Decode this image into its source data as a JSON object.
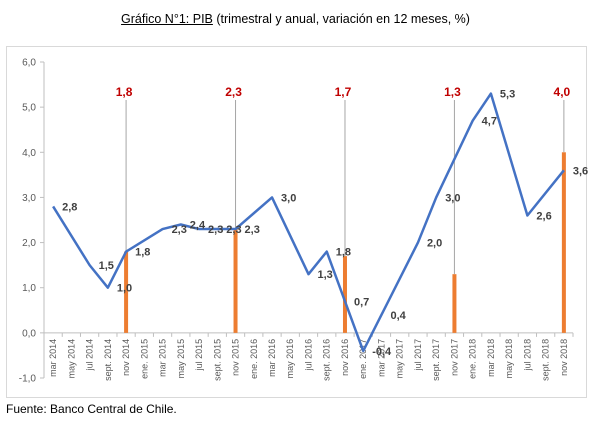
{
  "title": {
    "prefix": "Gráfico N°1: PIB",
    "rest": " (trimestral y anual, variación en 12 meses, %)"
  },
  "source": "Fuente: Banco Central de Chile.",
  "colors": {
    "line": "#4472C4",
    "bar": "#ED7D31",
    "annual_label": "#C00000",
    "quarterly_label": "#404040"
  },
  "chart_data": {
    "type": "bar+line",
    "title": "Gráfico N°1: PIB (trimestral y anual, variación en 12 meses, %)",
    "xlabel": "",
    "ylabel": "",
    "ylim": [
      -1.0,
      6.0
    ],
    "yticks": [
      "-1,0",
      "0,0",
      "1,0",
      "2,0",
      "3,0",
      "4,0",
      "5,0",
      "6,0"
    ],
    "grid": false,
    "legend": "none",
    "categories": [
      "mar 2014",
      "may 2014",
      "jul 2014",
      "sept 2014",
      "nov 2014",
      "ene 2015",
      "mar 2015",
      "may 2015",
      "jul 2015",
      "sept 2015",
      "nov 2015",
      "ene 2016",
      "mar 2016",
      "may 2016",
      "jul 2016",
      "sept 2016",
      "nov 2016",
      "ene 2017",
      "mar 2017",
      "may 2017",
      "jul 2017",
      "sept 2017",
      "nov 2017",
      "ene 2018",
      "mar 2018",
      "may 2018",
      "jul 2018",
      "sept 2018",
      "nov 2018"
    ],
    "tick_labels": [
      "mar 2014",
      "may 2014",
      "jul 2014",
      "sept. 2014",
      "nov 2014",
      "ene. 2015",
      "mar 2015",
      "may 2015",
      "jul 2015",
      "sept. 2015",
      "nov 2015",
      "ene. 2016",
      "mar 2016",
      "may 2016",
      "jul 2016",
      "sept. 2016",
      "nov 2016",
      "ene. 2017",
      "mar 2017",
      "may 2017",
      "jul 2017",
      "sept. 2017",
      "nov 2017",
      "ene. 2018",
      "mar 2018",
      "may 2018",
      "jul 2018",
      "sept. 2018",
      "nov 2018"
    ],
    "quarterly": {
      "points": [
        {
          "x": "mar 2014",
          "y": 2.8,
          "label": "2,8"
        },
        {
          "x": "jul 2014",
          "y": 1.5,
          "label": "1,5"
        },
        {
          "x": "sept 2014",
          "y": 1.0,
          "label": "1,0"
        },
        {
          "x": "nov 2014",
          "y": 1.8,
          "label": "1,8"
        },
        {
          "x": "mar 2015",
          "y": 2.3,
          "label": "2,3"
        },
        {
          "x": "may 2015",
          "y": 2.4,
          "label": "2,4"
        },
        {
          "x": "jul 2015",
          "y": 2.3,
          "label": "2,3"
        },
        {
          "x": "sept 2015",
          "y": 2.3,
          "label": "2,3"
        },
        {
          "x": "nov 2015",
          "y": 2.3,
          "label": "2,3"
        },
        {
          "x": "mar 2016",
          "y": 3.0,
          "label": "3,0"
        },
        {
          "x": "jul 2016",
          "y": 1.3,
          "label": "1,3"
        },
        {
          "x": "sept 2016",
          "y": 1.8,
          "label": "1,8"
        },
        {
          "x": "nov 2016",
          "y": 0.7,
          "label": "0,7"
        },
        {
          "x": "ene 2017",
          "y": -0.4,
          "label": "-0,4"
        },
        {
          "x": "mar 2017",
          "y": 0.4,
          "label": "0,4"
        },
        {
          "x": "jul 2017",
          "y": 2.0,
          "label": "2,0"
        },
        {
          "x": "sept 2017",
          "y": 3.0,
          "label": "3,0"
        },
        {
          "x": "ene 2018",
          "y": 4.7,
          "label": "4,7"
        },
        {
          "x": "mar 2018",
          "y": 5.3,
          "label": "5,3"
        },
        {
          "x": "jul 2018",
          "y": 2.6,
          "label": "2,6"
        },
        {
          "x": "nov 2018",
          "y": 3.6,
          "label": "3,6"
        }
      ]
    },
    "annual": {
      "bars": [
        {
          "x": "nov 2014",
          "y": 1.8,
          "label": "1,8"
        },
        {
          "x": "nov 2015",
          "y": 2.3,
          "label": "2,3"
        },
        {
          "x": "nov 2016",
          "y": 1.7,
          "label": "1,7"
        },
        {
          "x": "nov 2017",
          "y": 1.3,
          "label": "1,3"
        },
        {
          "x": "nov 2018",
          "y": 4.0,
          "label": "4,0"
        }
      ]
    }
  }
}
